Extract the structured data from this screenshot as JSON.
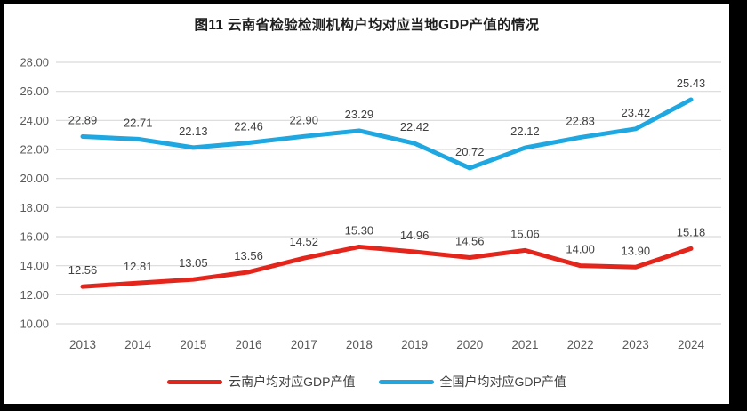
{
  "colors": {
    "frame": "#000000",
    "background": "#FFFFFF",
    "gridline": "#D9D9D9",
    "axis_text": "#595959",
    "label_text": "#404040",
    "title_text": "#1F1F1F"
  },
  "chart_data": {
    "type": "line",
    "title": "图11 云南省检验检测机构户均对应当地GDP产值的情况",
    "categories": [
      "2013",
      "2014",
      "2015",
      "2016",
      "2017",
      "2018",
      "2019",
      "2020",
      "2021",
      "2022",
      "2023",
      "2024"
    ],
    "series": [
      {
        "name": "云南户均对应GDP产值",
        "color": "#E4251C",
        "values": [
          12.56,
          12.81,
          13.05,
          13.56,
          14.52,
          15.3,
          14.96,
          14.56,
          15.06,
          14.0,
          13.9,
          15.18
        ]
      },
      {
        "name": "全国户均对应GDP产值",
        "color": "#1EA7E0",
        "values": [
          22.89,
          22.71,
          22.13,
          22.46,
          22.9,
          23.29,
          22.42,
          20.72,
          22.12,
          22.83,
          23.42,
          25.43
        ]
      }
    ],
    "xlabel": "",
    "ylabel": "",
    "ylim": [
      10,
      28
    ],
    "ytick_step": 2,
    "ytick_format": "two_decimals",
    "grid": "horizontal",
    "data_labels": true,
    "legend_position": "bottom"
  }
}
